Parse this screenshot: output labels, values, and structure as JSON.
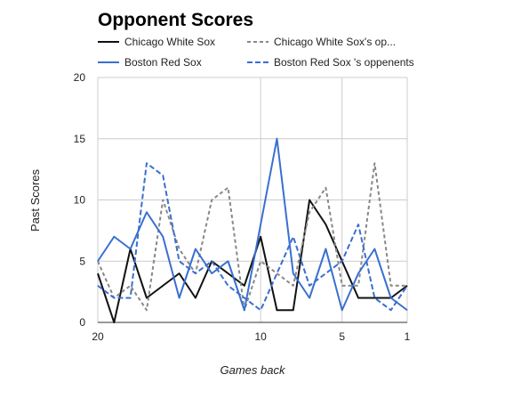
{
  "chart_data": {
    "type": "line",
    "title": "Opponent Scores",
    "xlabel": "Games back",
    "ylabel": "Past Scores",
    "xlim": [
      20,
      1
    ],
    "ylim": [
      0,
      20
    ],
    "x_ticks": [
      20,
      10,
      5,
      1
    ],
    "y_ticks": [
      0,
      5,
      10,
      15,
      20
    ],
    "x_tick_labels": [
      "20",
      "10",
      "5",
      "1"
    ],
    "y_tick_labels": [
      "0",
      "5",
      "10",
      "15",
      "20"
    ],
    "grid": true,
    "legend_position": "top",
    "x": [
      20,
      19,
      18,
      17,
      16,
      15,
      14,
      13,
      12,
      11,
      10,
      9,
      8,
      7,
      6,
      5,
      4,
      3,
      2,
      1
    ],
    "series": [
      {
        "name": "Chicago White Sox",
        "color": "#111111",
        "style": "solid",
        "values": [
          4,
          0,
          6,
          2,
          3,
          4,
          2,
          5,
          4,
          3,
          7,
          1,
          1,
          10,
          8,
          5,
          2,
          2,
          2,
          3
        ]
      },
      {
        "name": "Chicago White Sox's op...",
        "color": "#888888",
        "style": "dashed",
        "values": [
          5,
          2,
          3,
          1,
          10,
          6,
          4,
          10,
          11,
          1,
          5,
          4,
          3,
          9,
          11,
          3,
          3,
          13,
          3,
          3
        ]
      },
      {
        "name": "Boston Red Sox",
        "color": "#3a6fd0",
        "style": "solid",
        "values": [
          5,
          7,
          6,
          9,
          7,
          2,
          6,
          4,
          5,
          1,
          8,
          15,
          4,
          2,
          6,
          1,
          4,
          6,
          2,
          1
        ]
      },
      {
        "name": "Boston Red Sox 's oppenents",
        "color": "#3a6fd0",
        "style": "dashed",
        "values": [
          3,
          2,
          2,
          13,
          12,
          5,
          4,
          5,
          3,
          2,
          1,
          4,
          7,
          3,
          4,
          5,
          8,
          2,
          1,
          3
        ]
      }
    ]
  }
}
